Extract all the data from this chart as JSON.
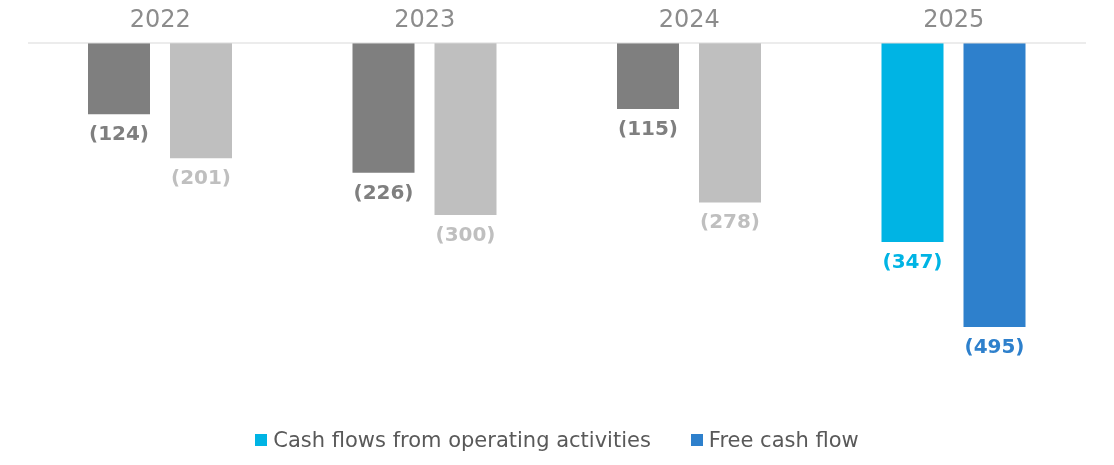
{
  "chart_data": {
    "type": "bar",
    "categories": [
      "2022",
      "2023",
      "2024",
      "2025"
    ],
    "series": [
      {
        "name": "Cash flows from operating activities",
        "color": "#00b4e4",
        "colors": [
          "#7f7f7f",
          "#7f7f7f",
          "#7f7f7f",
          "#00b4e4"
        ],
        "values": [
          -124,
          -226,
          -115,
          -347
        ],
        "value_labels": [
          "(124)",
          "(226)",
          "(115)",
          "(347)"
        ]
      },
      {
        "name": "Free cash flow",
        "color": "#2e80cc",
        "colors": [
          "#bfbfbf",
          "#bfbfbf",
          "#bfbfbf",
          "#2e80cc"
        ],
        "values": [
          -201,
          -300,
          -278,
          -495
        ],
        "value_labels": [
          "(201)",
          "(300)",
          "(278)",
          "(495)"
        ]
      }
    ],
    "legend": "bottom"
  }
}
